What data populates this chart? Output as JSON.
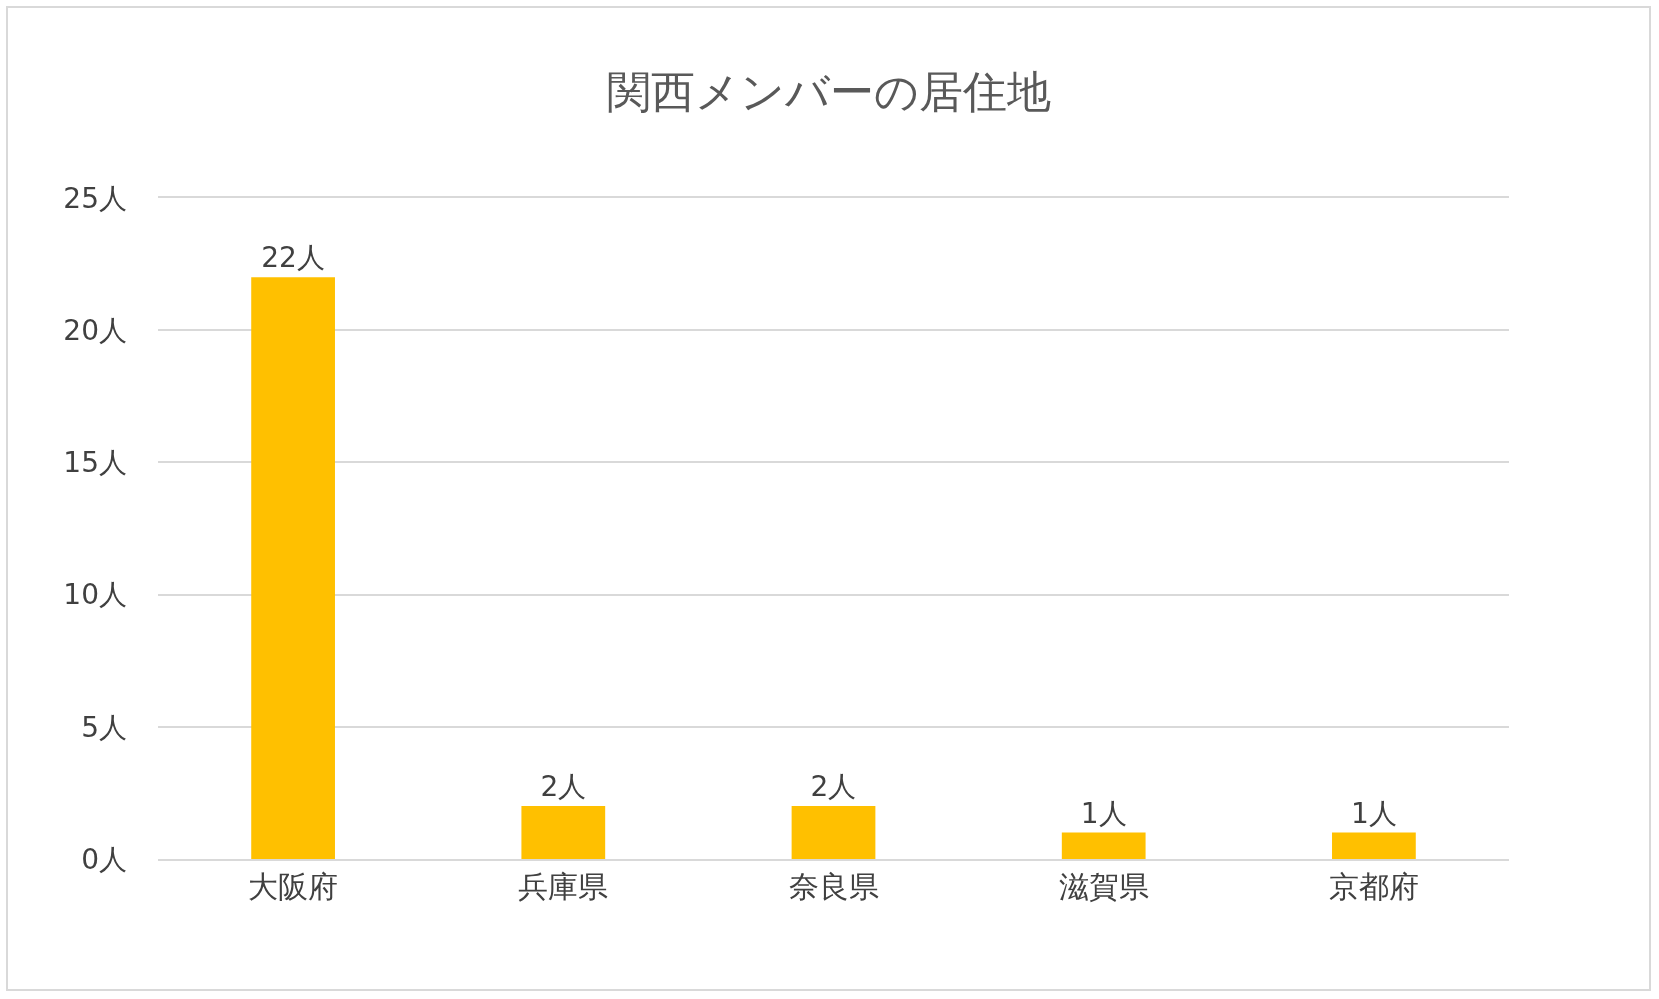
{
  "chart_data": {
    "type": "bar",
    "title": "関西メンバーの居住地",
    "categories": [
      "大阪府",
      "兵庫県",
      "奈良県",
      "滋賀県",
      "京都府"
    ],
    "values": [
      22,
      2,
      2,
      1,
      1
    ],
    "value_labels": [
      "22人",
      "2人",
      "2人",
      "1人",
      "1人"
    ],
    "color": "#ffc000",
    "ylim": [
      0,
      25
    ],
    "yticks": [
      {
        "value": 0,
        "label": "0人"
      },
      {
        "value": 5,
        "label": "5人"
      },
      {
        "value": 10,
        "label": "10人"
      },
      {
        "value": 15,
        "label": "15人"
      },
      {
        "value": 20,
        "label": "20人"
      },
      {
        "value": 25,
        "label": "25人"
      }
    ],
    "grid": "y"
  }
}
